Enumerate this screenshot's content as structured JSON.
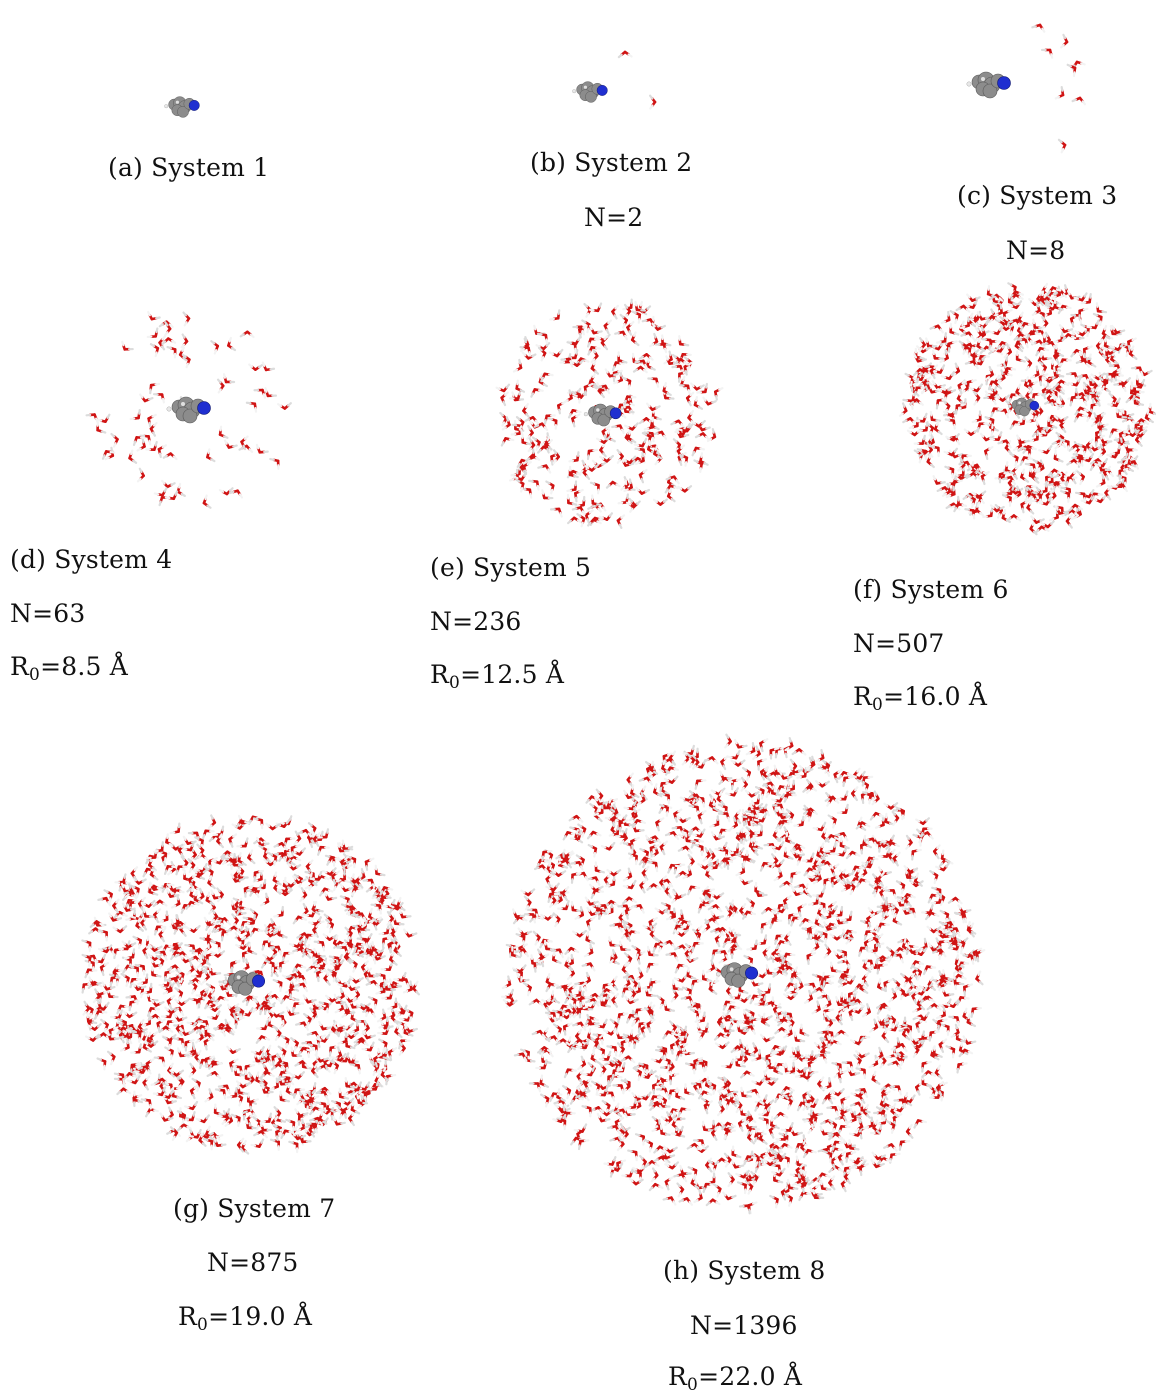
{
  "figure": {
    "panels": [
      {
        "id": "a",
        "caption": "(a) System 1",
        "n_label": "",
        "r0_value": "",
        "water_count": 0
      },
      {
        "id": "b",
        "caption": "(b) System 2",
        "n_label": "N=2",
        "r0_value": "",
        "water_count": 2
      },
      {
        "id": "c",
        "caption": "(c) System 3",
        "n_label": "N=8",
        "r0_value": "",
        "water_count": 8
      },
      {
        "id": "d",
        "caption": "(d) System 4",
        "n_label": "N=63",
        "r0_prefix": "R",
        "r0_sub": "0",
        "r0_value": "=8.5 Å",
        "water_count": 63
      },
      {
        "id": "e",
        "caption": "(e) System 5",
        "n_label": "N=236",
        "r0_prefix": "R",
        "r0_sub": "0",
        "r0_value": "=12.5 Å",
        "water_count": 236
      },
      {
        "id": "f",
        "caption": "(f) System 6",
        "n_label": "N=507",
        "r0_prefix": "R",
        "r0_sub": "0",
        "r0_value": "=16.0 Å",
        "water_count": 507
      },
      {
        "id": "g",
        "caption": "(g) System 7",
        "n_label": "N=875",
        "r0_prefix": "R",
        "r0_sub": "0",
        "r0_value": "=19.0 Å",
        "water_count": 875
      },
      {
        "id": "h",
        "caption": "(h) System 8",
        "n_label": "N=1396",
        "r0_prefix": "R",
        "r0_sub": "0",
        "r0_value": "=22.0 Å",
        "water_count": 1396
      }
    ]
  },
  "colors": {
    "oxygen": "#d01414",
    "hydrogen": "#e8e8e8",
    "carbon": "#8c8c8c",
    "nitrogen": "#1f2fd0"
  }
}
